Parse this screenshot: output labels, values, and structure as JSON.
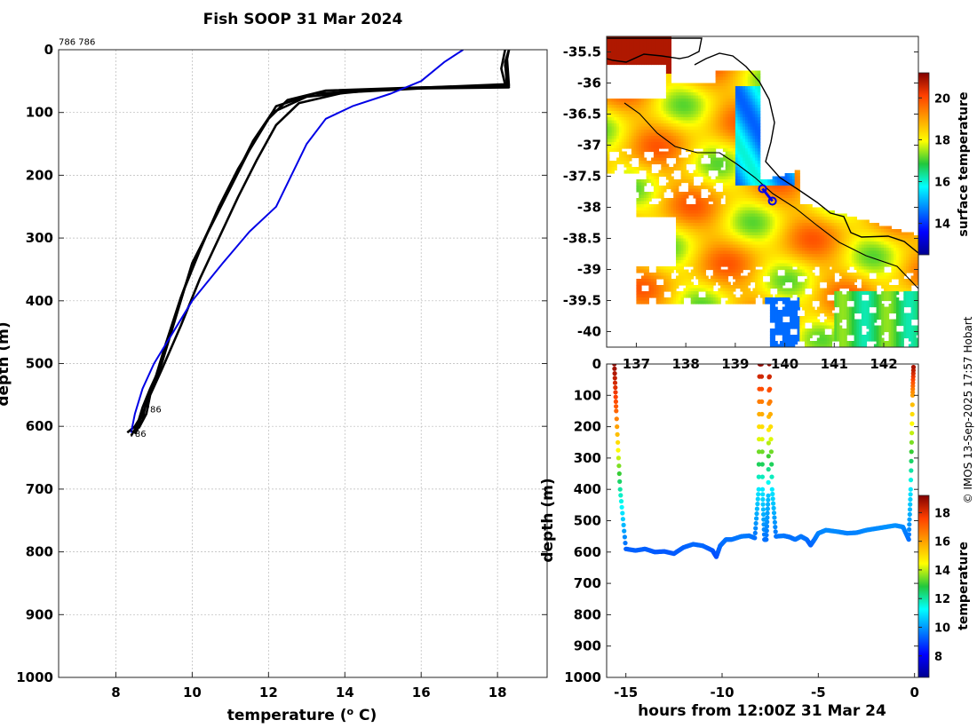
{
  "title": "Fish SOOP 31 Mar 2024",
  "credit": "© IMOS 13-Sep-2025 17:57 Hobart",
  "colors": {
    "profile_black": "#000000",
    "profile_blue": "#0000e6",
    "grid": "#b8b8b8"
  },
  "chart_data": [
    {
      "type": "line",
      "name": "temperature-depth-profile",
      "xlabel": "temperature (o C)",
      "xlabel_parts": {
        "pre": "temperature (",
        "sup": "o",
        "post": " C)"
      },
      "ylabel": "depth (m)",
      "xlim": [
        6.5,
        19.3
      ],
      "ylim": [
        1000,
        0
      ],
      "xticks": [
        8,
        10,
        12,
        14,
        16,
        18
      ],
      "yticks": [
        0,
        100,
        200,
        300,
        400,
        500,
        600,
        700,
        800,
        900,
        1000
      ],
      "grid": true,
      "annotations": [
        {
          "text": "786 786",
          "x": 6.5,
          "y": -8
        },
        {
          "text": "786",
          "x": 8.75,
          "y": 578
        },
        {
          "text": "786",
          "x": 8.35,
          "y": 617
        }
      ],
      "series": [
        {
          "name": "profile-1",
          "color": "#000000",
          "x": [
            18.3,
            18.2,
            18.25,
            16,
            13.5,
            12.5,
            12.0,
            11.5,
            11.0,
            10.5,
            10.0,
            9.6,
            9.2,
            8.9,
            8.7,
            8.6,
            8.5,
            8.3
          ],
          "y": [
            0,
            20,
            58,
            60,
            65,
            80,
            110,
            160,
            220,
            280,
            340,
            420,
            500,
            540,
            570,
            590,
            600,
            610
          ]
        },
        {
          "name": "profile-2",
          "color": "#000000",
          "x": [
            18.3,
            18.2,
            18.3,
            15.5,
            13.2,
            12.2,
            11.8,
            11.2,
            10.7,
            10.2,
            9.8,
            9.4,
            9.1,
            8.8,
            8.7,
            8.5
          ],
          "y": [
            0,
            25,
            60,
            62,
            70,
            90,
            130,
            190,
            250,
            320,
            380,
            460,
            520,
            560,
            590,
            612
          ]
        },
        {
          "name": "profile-3",
          "color": "#000000",
          "x": [
            18.2,
            18.1,
            18.2,
            15.0,
            13.0,
            12.1,
            11.6,
            11.1,
            10.6,
            10.1,
            9.7,
            9.3,
            9.0,
            8.8,
            8.6,
            8.4
          ],
          "y": [
            0,
            30,
            55,
            63,
            75,
            100,
            145,
            205,
            265,
            330,
            395,
            470,
            530,
            565,
            595,
            615
          ]
        },
        {
          "name": "profile-4",
          "color": "#000000",
          "x": [
            18.3,
            18.25,
            18.3,
            16.5,
            14.0,
            12.8,
            12.2,
            11.7,
            11.2,
            10.7,
            10.2,
            9.7,
            9.2,
            8.9,
            8.8,
            8.6
          ],
          "y": [
            0,
            15,
            57,
            60,
            68,
            85,
            120,
            175,
            235,
            300,
            365,
            440,
            510,
            550,
            580,
            603
          ]
        },
        {
          "name": "climatology",
          "color": "#0000e6",
          "x": [
            17.1,
            16.6,
            16.0,
            15.2,
            14.2,
            13.5,
            13.0,
            12.6,
            12.2,
            11.5,
            10.8,
            10.0,
            9.5,
            9.0,
            8.7,
            8.5,
            8.4
          ],
          "y": [
            0,
            20,
            50,
            70,
            90,
            110,
            150,
            200,
            250,
            290,
            340,
            400,
            450,
            500,
            540,
            580,
            610
          ]
        }
      ]
    },
    {
      "type": "heatmap",
      "name": "surface-temperature-map",
      "xticks": [
        137,
        138,
        139,
        140,
        141,
        142
      ],
      "yticks": [
        -35.5,
        -36,
        -36.5,
        -37,
        -37.5,
        -38,
        -38.5,
        -39,
        -39.5,
        -40
      ],
      "xlim": [
        136.4,
        142.7
      ],
      "ylim": [
        -40.25,
        -35.25
      ],
      "colorbar_label": "surface temperature",
      "colorbar_ticks": [
        14,
        16,
        18,
        20
      ],
      "colorbar_range": [
        12.5,
        21.2
      ],
      "coastline_note": "black coastline with shelf-break contour",
      "track": {
        "lon": [
          139.55,
          139.75
        ],
        "lat": [
          -37.7,
          -37.9
        ]
      }
    },
    {
      "type": "scatter",
      "name": "depth-time-section",
      "xlabel": "hours from 12:00Z 31 Mar 24",
      "ylabel": "depth (m)",
      "xlim": [
        -16,
        0.2
      ],
      "ylim": [
        1000,
        0
      ],
      "xticks": [
        -15,
        -10,
        -5,
        0
      ],
      "yticks": [
        0,
        100,
        200,
        300,
        400,
        500,
        600,
        700,
        800,
        900,
        1000
      ],
      "colorbar_label": "temperature",
      "colorbar_ticks": [
        8,
        10,
        12,
        14,
        16,
        18
      ],
      "colorbar_range": [
        6.5,
        19.2
      ],
      "series": [
        {
          "name": "dive-track",
          "hours": [
            -15.6,
            -15.5,
            -15.3,
            -15.0,
            -14.5,
            -14.0,
            -13.5,
            -13.0,
            -12.5,
            -12.0,
            -11.5,
            -11.0,
            -10.5,
            -10.3,
            -10.1,
            -9.8,
            -9.5,
            -9.0,
            -8.6,
            -8.3,
            -8.1,
            -8.05,
            -7.95,
            -7.9,
            -7.8,
            -7.7,
            -7.6,
            -7.55,
            -7.4,
            -7.2,
            -6.8,
            -6.5,
            -6.2,
            -5.9,
            -5.6,
            -5.4,
            -5.2,
            -5.0,
            -4.6,
            -4.0,
            -3.5,
            -3.0,
            -2.5,
            -2.0,
            -1.5,
            -1.0,
            -0.6,
            -0.3,
            -0.2,
            -0.1,
            -0.05
          ],
          "depth": [
            0,
            150,
            400,
            590,
            595,
            590,
            600,
            598,
            605,
            585,
            575,
            580,
            595,
            615,
            580,
            560,
            560,
            550,
            548,
            555,
            400,
            0,
            0,
            400,
            560,
            560,
            420,
            0,
            400,
            550,
            548,
            552,
            560,
            550,
            560,
            578,
            560,
            540,
            530,
            535,
            540,
            538,
            530,
            525,
            520,
            515,
            520,
            560,
            400,
            100,
            0
          ],
          "temperature": [
            19,
            17,
            12,
            9.3,
            9.3,
            9.3,
            9.2,
            9.2,
            9.2,
            9.3,
            9.4,
            9.4,
            9.2,
            9.0,
            9.4,
            9.5,
            9.5,
            9.6,
            9.6,
            9.5,
            11,
            19,
            19,
            11,
            9.5,
            9.5,
            10.5,
            19,
            11,
            9.5,
            9.6,
            9.5,
            9.5,
            9.6,
            9.5,
            9.3,
            9.5,
            9.7,
            9.8,
            9.8,
            9.7,
            9.7,
            9.8,
            9.8,
            9.9,
            9.9,
            9.8,
            9.5,
            11,
            16,
            19
          ]
        }
      ]
    }
  ]
}
